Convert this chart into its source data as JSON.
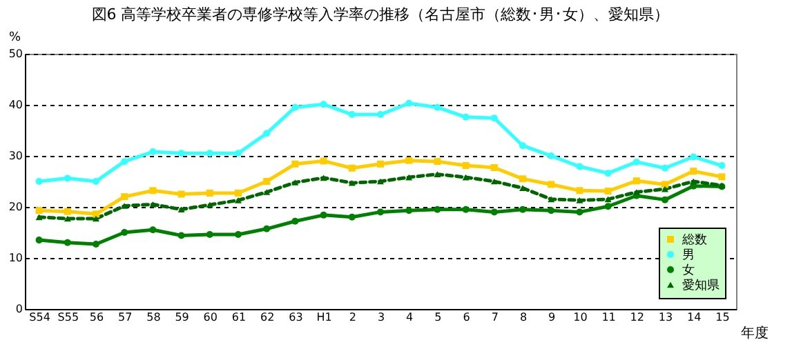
{
  "chart_data": {
    "type": "line",
    "title": "図6 高等学校卒業者の専修学校等入学率の推移（名古屋市（総数･男･女）、愛知県）",
    "ylabel": "%",
    "xlabel": "年度",
    "categories": [
      "S54",
      "S55",
      "56",
      "57",
      "58",
      "59",
      "60",
      "61",
      "62",
      "63",
      "H1",
      "2",
      "3",
      "4",
      "5",
      "6",
      "7",
      "8",
      "9",
      "10",
      "11",
      "12",
      "13",
      "14",
      "15"
    ],
    "ylim": [
      0,
      50
    ],
    "yticks": [
      0,
      10,
      20,
      30,
      40,
      50
    ],
    "grid": "y",
    "legend": "bottom right",
    "series": [
      {
        "name": "総数",
        "color": "#ffcc00",
        "marker": "square",
        "line_style": "solid",
        "values": [
          19.3,
          19.1,
          18.6,
          22.0,
          23.2,
          22.5,
          22.7,
          22.7,
          25.0,
          28.4,
          29.0,
          27.6,
          28.4,
          29.1,
          28.9,
          28.1,
          27.7,
          25.5,
          24.4,
          23.2,
          23.1,
          25.1,
          24.4,
          27.0,
          25.9
        ]
      },
      {
        "name": "男",
        "color": "#33ffff",
        "marker": "circle",
        "line_style": "solid",
        "values": [
          25.0,
          25.6,
          25.0,
          28.9,
          30.8,
          30.5,
          30.5,
          30.5,
          34.4,
          39.5,
          40.1,
          38.1,
          38.1,
          40.3,
          39.5,
          37.6,
          37.4,
          32.0,
          30.0,
          27.9,
          26.6,
          28.8,
          27.6,
          29.8,
          28.1
        ]
      },
      {
        "name": "女",
        "color": "#008000",
        "marker": "circle",
        "line_style": "solid",
        "values": [
          13.5,
          13.0,
          12.7,
          15.0,
          15.5,
          14.4,
          14.6,
          14.6,
          15.7,
          17.2,
          18.4,
          18.0,
          19.0,
          19.3,
          19.5,
          19.5,
          19.0,
          19.5,
          19.3,
          19.0,
          20.1,
          22.2,
          21.4,
          24.1,
          24.0
        ]
      },
      {
        "name": "愛知県",
        "color": "#006600",
        "marker": "triangle",
        "line_style": "dashed",
        "values": [
          18.0,
          17.7,
          17.7,
          20.2,
          20.5,
          19.5,
          20.4,
          21.3,
          22.9,
          24.8,
          25.7,
          24.7,
          25.0,
          25.8,
          26.4,
          25.8,
          25.0,
          23.7,
          21.5,
          21.3,
          21.5,
          22.9,
          23.5,
          25.0,
          24.2
        ]
      }
    ]
  }
}
